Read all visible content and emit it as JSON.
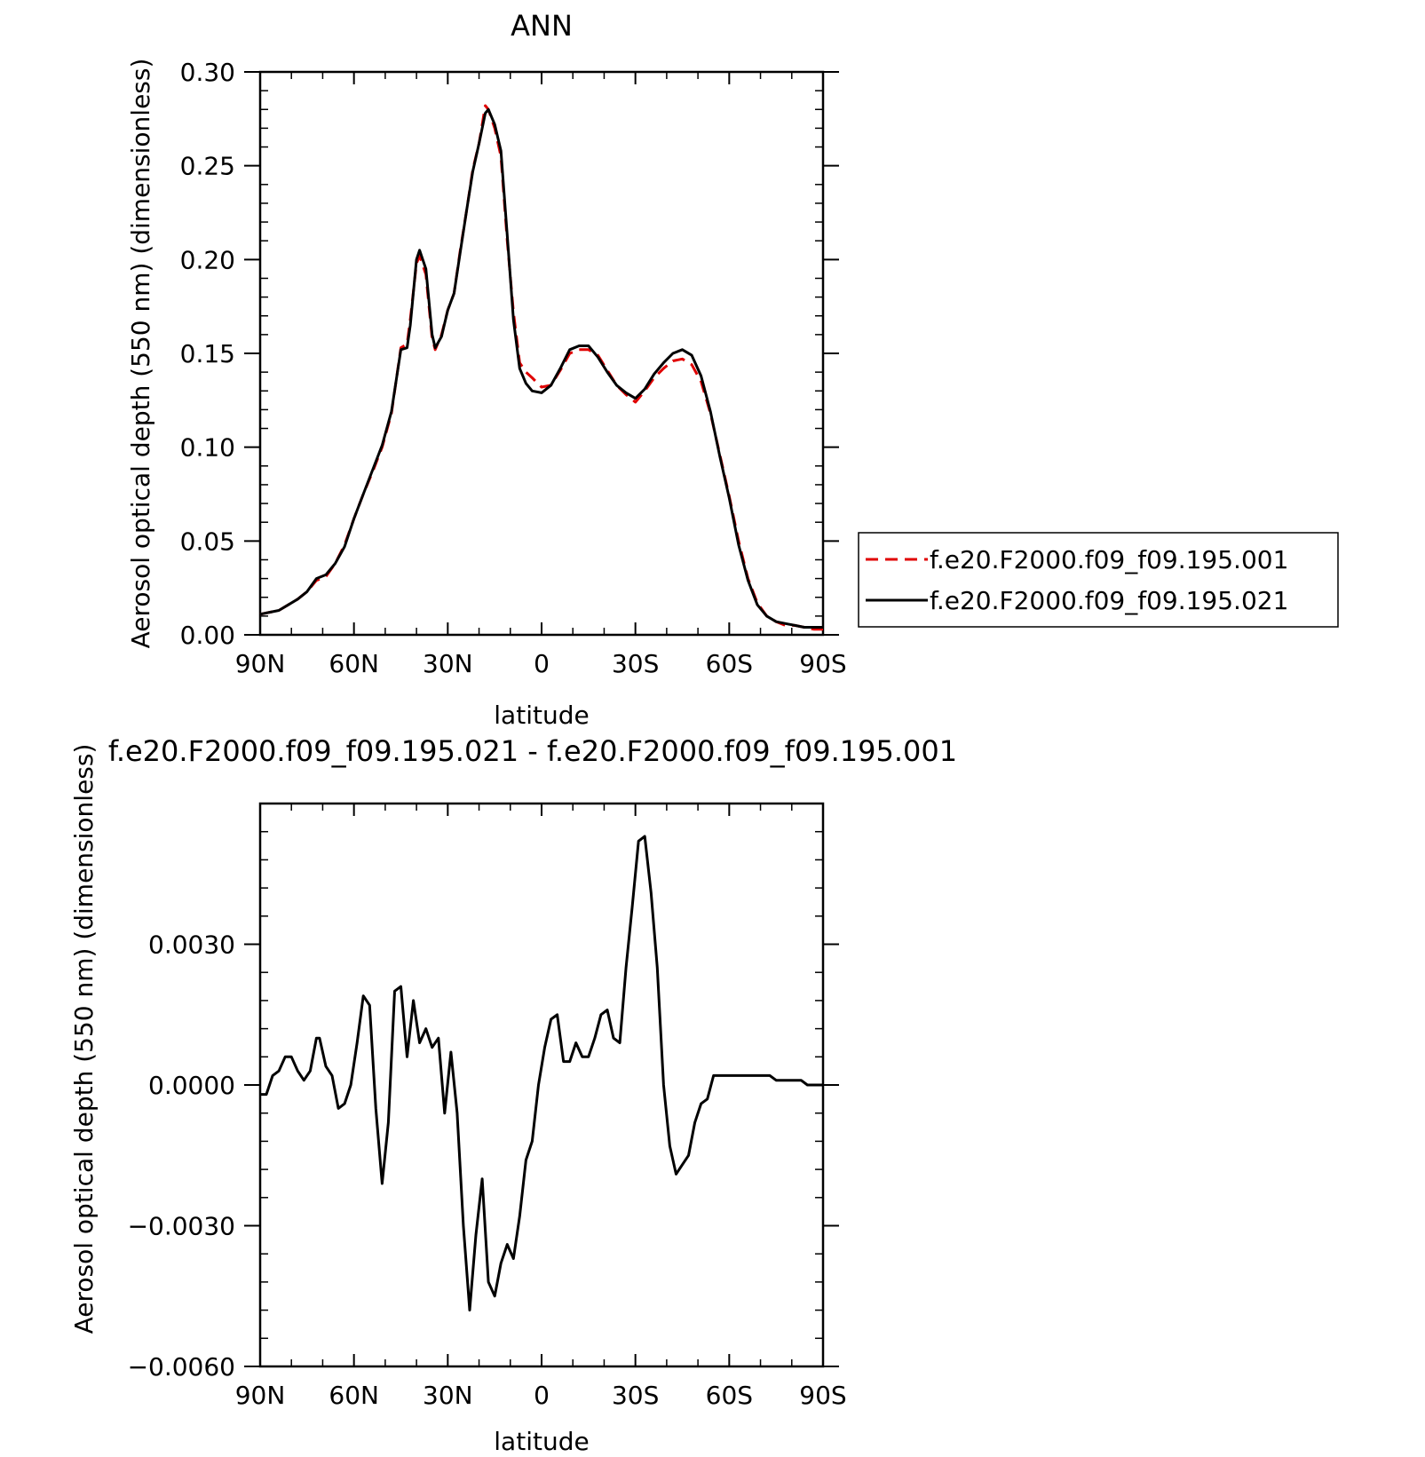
{
  "chart_data": [
    {
      "type": "line",
      "title": "ANN",
      "xlabel": "latitude",
      "ylabel": "Aerosol optical depth (550 nm) (dimensionless)",
      "xlim": [
        90,
        -90
      ],
      "ylim": [
        0.0,
        0.3
      ],
      "x_ticks": [
        90,
        60,
        30,
        0,
        -30,
        -60,
        -90
      ],
      "x_tick_labels": [
        "90N",
        "60N",
        "30N",
        "0",
        "30S",
        "60S",
        "90S"
      ],
      "y_ticks": [
        0.0,
        0.05,
        0.1,
        0.15,
        0.2,
        0.25,
        0.3
      ],
      "y_tick_labels": [
        "0.00",
        "0.05",
        "0.10",
        "0.15",
        "0.20",
        "0.25",
        "0.30"
      ],
      "legend": {
        "placement": "right",
        "entries": [
          "f.e20.F2000.f09_f09.195.001",
          "f.e20.F2000.f09_f09.195.021"
        ]
      },
      "grid": false,
      "series": [
        {
          "name": "f.e20.F2000.f09_f09.195.001",
          "color": "#e00000",
          "style": "dashed",
          "x": [
            90,
            87,
            84,
            81,
            78,
            75,
            72,
            69,
            66,
            63,
            60,
            57,
            54,
            51,
            48,
            45,
            43,
            42,
            40,
            39,
            37,
            35,
            34,
            32,
            30,
            28,
            26,
            24,
            22,
            20,
            18,
            17,
            15,
            13,
            11,
            9,
            7,
            5,
            3,
            0,
            -3,
            -6,
            -9,
            -12,
            -15,
            -18,
            -21,
            -24,
            -27,
            -30,
            -33,
            -36,
            -39,
            -42,
            -45,
            -48,
            -51,
            -54,
            -57,
            -60,
            -63,
            -66,
            -69,
            -72,
            -75,
            -78,
            -81,
            -84,
            -87,
            -90
          ],
          "y": [
            0.011,
            0.012,
            0.013,
            0.016,
            0.019,
            0.023,
            0.029,
            0.031,
            0.038,
            0.048,
            0.062,
            0.075,
            0.087,
            0.1,
            0.118,
            0.153,
            0.155,
            0.168,
            0.198,
            0.202,
            0.192,
            0.158,
            0.152,
            0.16,
            0.173,
            0.182,
            0.205,
            0.226,
            0.248,
            0.262,
            0.282,
            0.28,
            0.27,
            0.255,
            0.21,
            0.172,
            0.145,
            0.14,
            0.137,
            0.132,
            0.133,
            0.141,
            0.15,
            0.152,
            0.152,
            0.149,
            0.141,
            0.133,
            0.128,
            0.124,
            0.13,
            0.137,
            0.142,
            0.146,
            0.147,
            0.144,
            0.135,
            0.118,
            0.096,
            0.074,
            0.05,
            0.03,
            0.017,
            0.01,
            0.007,
            0.005,
            0.005,
            0.004,
            0.003,
            0.003
          ]
        },
        {
          "name": "f.e20.F2000.f09_f09.195.021",
          "color": "#000000",
          "style": "solid",
          "x": [
            90,
            87,
            84,
            81,
            78,
            75,
            72,
            69,
            66,
            63,
            60,
            57,
            54,
            51,
            48,
            45,
            43,
            42,
            40,
            39,
            37,
            35,
            34,
            32,
            30,
            28,
            26,
            24,
            22,
            20,
            18,
            17,
            15,
            13,
            11,
            9,
            7,
            5,
            3,
            0,
            -3,
            -6,
            -9,
            -12,
            -15,
            -18,
            -21,
            -24,
            -27,
            -30,
            -33,
            -36,
            -39,
            -42,
            -45,
            -48,
            -51,
            -54,
            -57,
            -60,
            -63,
            -66,
            -69,
            -72,
            -75,
            -78,
            -81,
            -84,
            -87,
            -90
          ],
          "y": [
            0.011,
            0.012,
            0.013,
            0.016,
            0.019,
            0.023,
            0.03,
            0.032,
            0.038,
            0.047,
            0.062,
            0.075,
            0.088,
            0.101,
            0.119,
            0.152,
            0.153,
            0.165,
            0.2,
            0.205,
            0.195,
            0.16,
            0.153,
            0.159,
            0.173,
            0.182,
            0.204,
            0.226,
            0.247,
            0.262,
            0.278,
            0.28,
            0.272,
            0.258,
            0.213,
            0.168,
            0.142,
            0.134,
            0.13,
            0.129,
            0.133,
            0.142,
            0.152,
            0.154,
            0.154,
            0.148,
            0.14,
            0.133,
            0.129,
            0.126,
            0.131,
            0.139,
            0.145,
            0.15,
            0.152,
            0.149,
            0.138,
            0.119,
            0.095,
            0.073,
            0.048,
            0.029,
            0.016,
            0.01,
            0.007,
            0.006,
            0.005,
            0.004,
            0.004,
            0.004
          ]
        }
      ]
    },
    {
      "type": "line",
      "title": "f.e20.F2000.f09_f09.195.021 - f.e20.F2000.f09_f09.195.001",
      "xlabel": "latitude",
      "ylabel": "Aerosol optical depth (550 nm) (dimensionless)",
      "xlim": [
        90,
        -90
      ],
      "ylim": [
        -0.006,
        0.006
      ],
      "x_ticks": [
        90,
        60,
        30,
        0,
        -30,
        -60,
        -90
      ],
      "x_tick_labels": [
        "90N",
        "60N",
        "30N",
        "0",
        "30S",
        "60S",
        "90S"
      ],
      "y_ticks": [
        -0.006,
        -0.003,
        0.0,
        0.003
      ],
      "y_tick_labels": [
        "−0.0060",
        "−0.0030",
        "0.0000",
        "0.0030"
      ],
      "grid": false,
      "series": [
        {
          "name": "",
          "color": "#000000",
          "style": "solid",
          "x": [
            90,
            88,
            86,
            84,
            82,
            80,
            78,
            76,
            74,
            72,
            71,
            69,
            67,
            65,
            63,
            61,
            59,
            57,
            55,
            53,
            51,
            49,
            47,
            45,
            43,
            41,
            39,
            37,
            35,
            33,
            31,
            29,
            27,
            25,
            23,
            21,
            19,
            17,
            15,
            13,
            11,
            9,
            7,
            5,
            3,
            1,
            -1,
            -3,
            -5,
            -7,
            -9,
            -11,
            -13,
            -15,
            -17,
            -19,
            -21,
            -23,
            -25,
            -27,
            -29,
            -31,
            -33,
            -35,
            -37,
            -39,
            -41,
            -43,
            -45,
            -47,
            -49,
            -51,
            -53,
            -55,
            -57,
            -59,
            -61,
            -63,
            -65,
            -67,
            -69,
            -71,
            -73,
            -75,
            -77,
            -79,
            -81,
            -83,
            -85,
            -87,
            -90
          ],
          "y": [
            -0.0002,
            -0.0002,
            0.0002,
            0.0003,
            0.0006,
            0.0006,
            0.0003,
            0.0001,
            0.0003,
            0.001,
            0.001,
            0.0004,
            0.0002,
            -0.0005,
            -0.0004,
            0.0,
            0.0009,
            0.0019,
            0.0017,
            -0.0005,
            -0.0021,
            -0.0008,
            0.002,
            0.0021,
            0.0006,
            0.0018,
            0.0009,
            0.0012,
            0.0008,
            0.001,
            -0.0006,
            0.0007,
            -0.0006,
            -0.003,
            -0.0048,
            -0.0032,
            -0.002,
            -0.0042,
            -0.0045,
            -0.0038,
            -0.0034,
            -0.0037,
            -0.0028,
            -0.0016,
            -0.0012,
            0.0,
            0.0008,
            0.0014,
            0.0015,
            0.0005,
            0.0005,
            0.0009,
            0.0006,
            0.0006,
            0.001,
            0.0015,
            0.0016,
            0.001,
            0.0009,
            0.0025,
            0.0038,
            0.0052,
            0.0053,
            0.0041,
            0.0025,
            0.0,
            -0.0013,
            -0.0019,
            -0.0017,
            -0.0015,
            -0.0008,
            -0.0004,
            -0.0003,
            0.0002,
            0.0002,
            0.0002,
            0.0002,
            0.0002,
            0.0002,
            0.0002,
            0.0002,
            0.0002,
            0.0002,
            0.0001,
            0.0001,
            0.0001,
            0.0001,
            0.0001,
            0.0,
            0.0,
            0.0
          ]
        }
      ]
    }
  ]
}
